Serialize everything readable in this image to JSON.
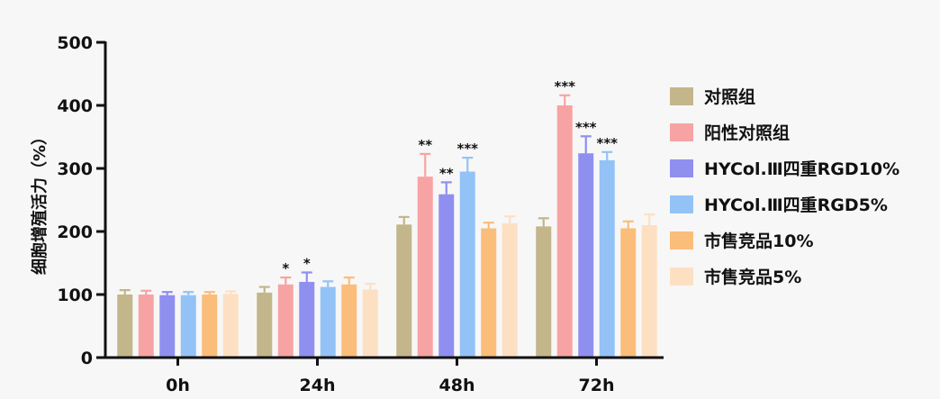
{
  "chart_data": {
    "type": "bar",
    "ylabel": "细胞增殖活力（%）",
    "ylim": [
      0,
      500
    ],
    "yticks": [
      0,
      100,
      200,
      300,
      400,
      500
    ],
    "categories": [
      "0h",
      "24h",
      "48h",
      "72h"
    ],
    "legend_position": "right",
    "series": [
      {
        "name": "对照组",
        "color": "#c2b68a",
        "values": [
          100,
          103,
          211,
          208
        ],
        "errors": [
          7,
          9,
          12,
          13
        ],
        "sig": [
          "",
          "",
          "",
          ""
        ]
      },
      {
        "name": "阳性对照组",
        "color": "#f8a3a3",
        "values": [
          100,
          116,
          287,
          400
        ],
        "errors": [
          6,
          11,
          36,
          16
        ],
        "sig": [
          "",
          "*",
          "**",
          "***"
        ]
      },
      {
        "name": "HYCol.Ⅲ四重RGD10%",
        "color": "#8f8ff0",
        "values": [
          99,
          120,
          259,
          324
        ],
        "errors": [
          5,
          15,
          19,
          27
        ],
        "sig": [
          "",
          "*",
          "**",
          "***"
        ]
      },
      {
        "name": "HYCol.Ⅲ四重RGD5%",
        "color": "#93c3f6",
        "values": [
          99,
          112,
          295,
          313
        ],
        "errors": [
          5,
          9,
          22,
          13
        ],
        "sig": [
          "",
          "",
          "***",
          "***"
        ]
      },
      {
        "name": "市售竞品10%",
        "color": "#fbbd7a",
        "values": [
          100,
          116,
          205,
          205
        ],
        "errors": [
          4,
          11,
          9,
          11
        ],
        "sig": [
          "",
          "",
          "",
          ""
        ]
      },
      {
        "name": "市售竞品5%",
        "color": "#fde0c2",
        "values": [
          101,
          108,
          213,
          210
        ],
        "errors": [
          4,
          9,
          11,
          17
        ],
        "sig": [
          "",
          "",
          "",
          ""
        ]
      }
    ]
  }
}
